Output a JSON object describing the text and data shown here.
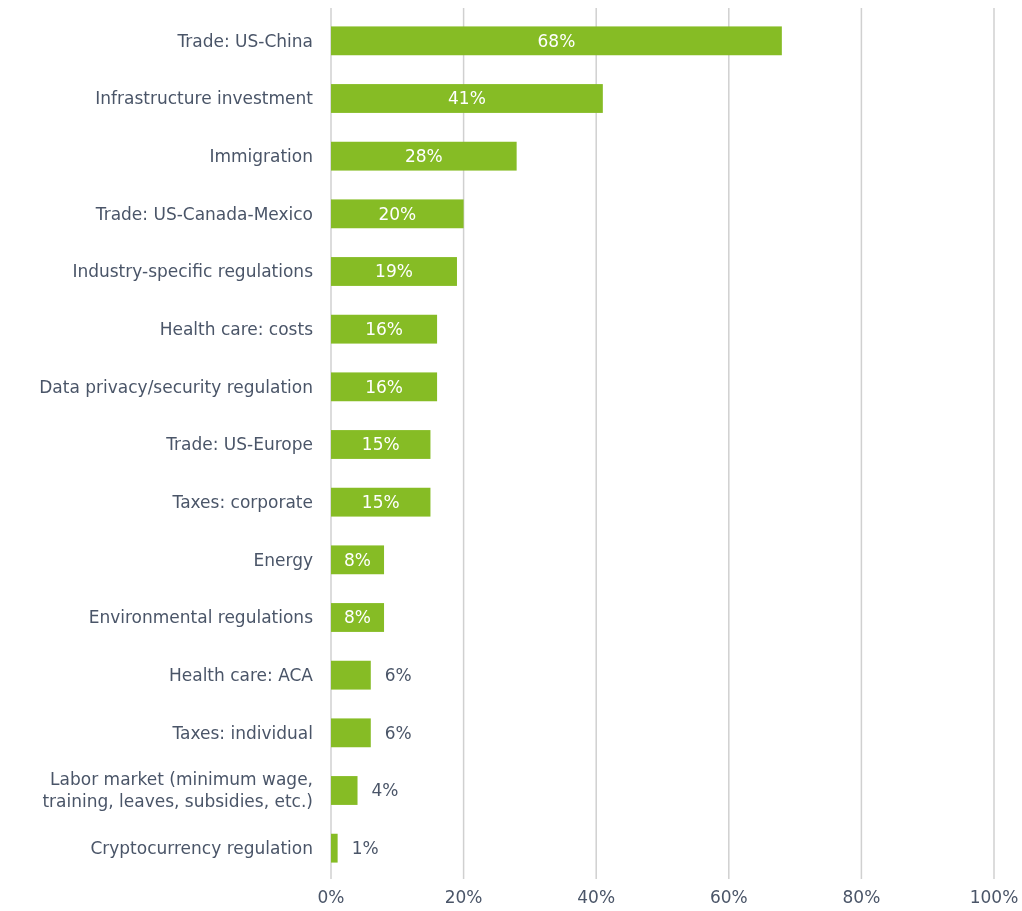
{
  "chart_data": {
    "type": "bar",
    "orientation": "horizontal",
    "categories": [
      "Trade: US-China",
      "Infrastructure investment",
      "Immigration",
      "Trade: US-Canada-Mexico",
      "Industry-specific regulations",
      "Health care: costs",
      "Data privacy/security regulation",
      "Trade: US-Europe",
      "Taxes: corporate",
      "Energy",
      "Environmental regulations",
      "Health care: ACA",
      "Taxes: individual",
      "Labor market (minimum wage, training, leaves, subsidies, etc.)",
      "Cryptocurrency regulation"
    ],
    "values": [
      68,
      41,
      28,
      20,
      19,
      16,
      16,
      15,
      15,
      8,
      8,
      6,
      6,
      4,
      1
    ],
    "value_labels": [
      "68%",
      "41%",
      "28%",
      "20%",
      "19%",
      "16%",
      "16%",
      "15%",
      "15%",
      "8%",
      "8%",
      "6%",
      "6%",
      "4%",
      "1%"
    ],
    "color": "#86bc25",
    "xlim": [
      0,
      100
    ],
    "xticks": [
      {
        "value": 0,
        "label": "0%"
      },
      {
        "value": 20,
        "label": "20%"
      },
      {
        "value": 40,
        "label": "40%"
      },
      {
        "value": 60,
        "label": "60%"
      },
      {
        "value": 80,
        "label": "80%"
      },
      {
        "value": 100,
        "label": "100%"
      }
    ],
    "grid": "x"
  }
}
